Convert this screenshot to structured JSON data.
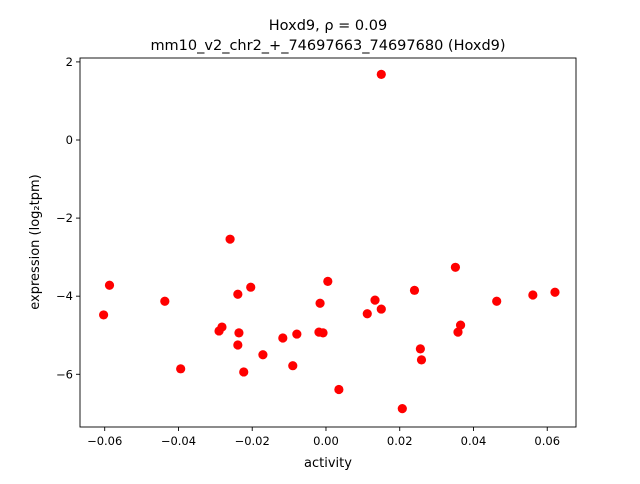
{
  "chart_data": {
    "type": "scatter",
    "title_line1": "Hoxd9, ρ = 0.09",
    "title_line2": "mm10_v2_chr2_+_74697663_74697680 (Hoxd9)",
    "xlabel": "activity",
    "ylabel": "expression (log₂tpm)",
    "xlim": [
      -0.0667,
      0.0678
    ],
    "ylim": [
      -7.35,
      2.1
    ],
    "xticks": [
      -0.06,
      -0.04,
      -0.02,
      0.0,
      0.02,
      0.04,
      0.06
    ],
    "xtick_labels": [
      "−0.06",
      "−0.04",
      "−0.02",
      "0.00",
      "0.02",
      "0.04",
      "0.06"
    ],
    "yticks": [
      2,
      0,
      -2,
      -4,
      -6
    ],
    "ytick_labels": [
      "2",
      "0",
      "−2",
      "−4",
      "−6"
    ],
    "grid": false,
    "marker_color": "#ff0000",
    "points": [
      [
        -0.0603,
        -4.48
      ],
      [
        -0.0587,
        -3.72
      ],
      [
        -0.0437,
        -4.13
      ],
      [
        -0.0394,
        -5.86
      ],
      [
        -0.029,
        -4.89
      ],
      [
        -0.0282,
        -4.79
      ],
      [
        -0.026,
        -2.54
      ],
      [
        -0.0239,
        -3.95
      ],
      [
        -0.0236,
        -4.94
      ],
      [
        -0.0239,
        -5.25
      ],
      [
        -0.0223,
        -5.94
      ],
      [
        -0.0204,
        -3.77
      ],
      [
        -0.0171,
        -5.5
      ],
      [
        -0.0117,
        -5.07
      ],
      [
        -0.009,
        -5.78
      ],
      [
        -0.0079,
        -4.97
      ],
      [
        -0.0016,
        -4.18
      ],
      [
        -0.0019,
        -4.92
      ],
      [
        -0.0008,
        -4.94
      ],
      [
        0.0005,
        -3.62
      ],
      [
        0.0035,
        -6.39
      ],
      [
        0.0112,
        -4.45
      ],
      [
        0.0133,
        -4.1
      ],
      [
        0.015,
        1.68
      ],
      [
        0.015,
        -4.33
      ],
      [
        0.0207,
        -6.88
      ],
      [
        0.024,
        -3.85
      ],
      [
        0.0256,
        -5.35
      ],
      [
        0.0259,
        -5.63
      ],
      [
        0.0351,
        -3.26
      ],
      [
        0.0358,
        -4.92
      ],
      [
        0.0365,
        -4.74
      ],
      [
        0.0463,
        -4.13
      ],
      [
        0.0561,
        -3.97
      ],
      [
        0.0621,
        -3.9
      ]
    ]
  }
}
